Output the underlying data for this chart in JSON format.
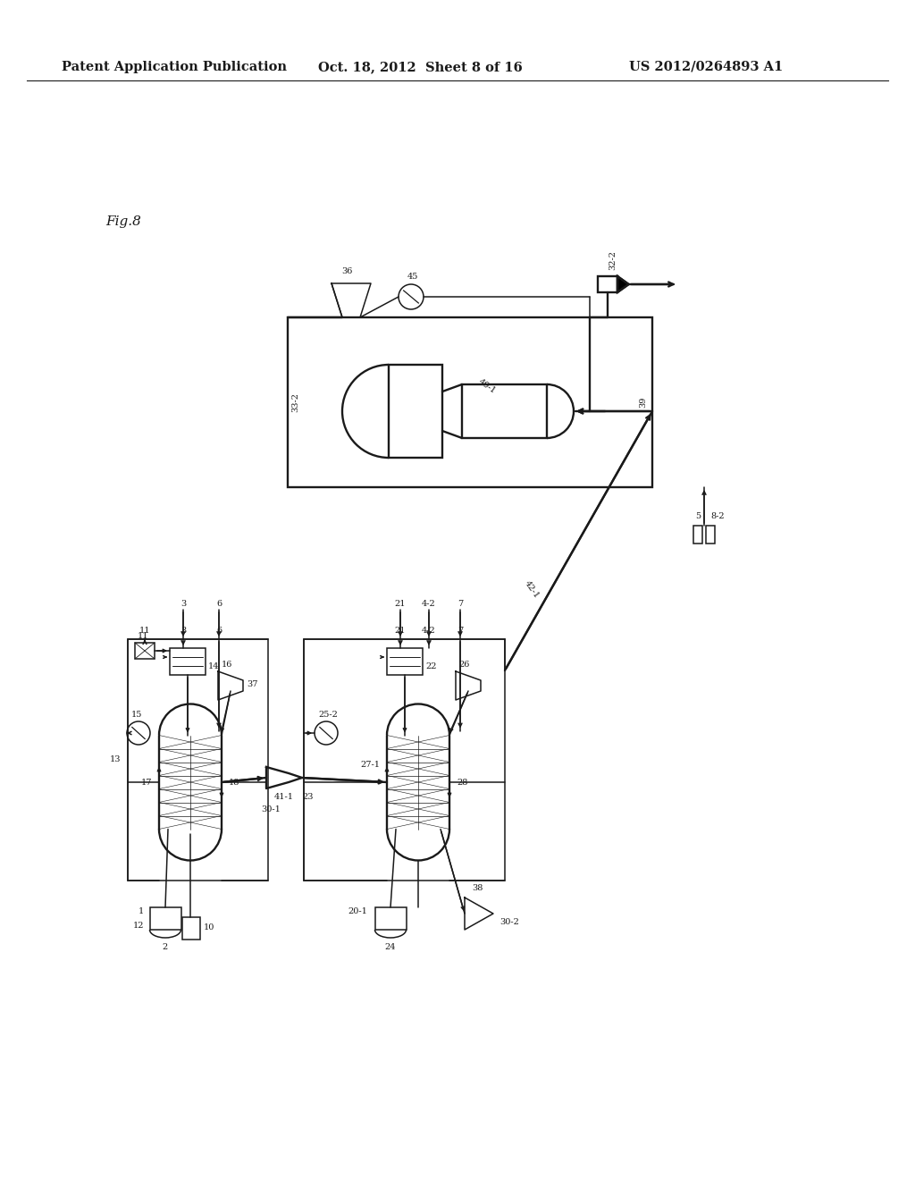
{
  "header_left": "Patent Application Publication",
  "header_mid": "Oct. 18, 2012  Sheet 8 of 16",
  "header_right": "US 2012/0264893 A1",
  "fig_label": "Fig.8",
  "bg_color": "#ffffff",
  "line_color": "#1a1a1a",
  "font_size_header": 10.5,
  "font_size_label": 7,
  "font_size_fig": 11
}
